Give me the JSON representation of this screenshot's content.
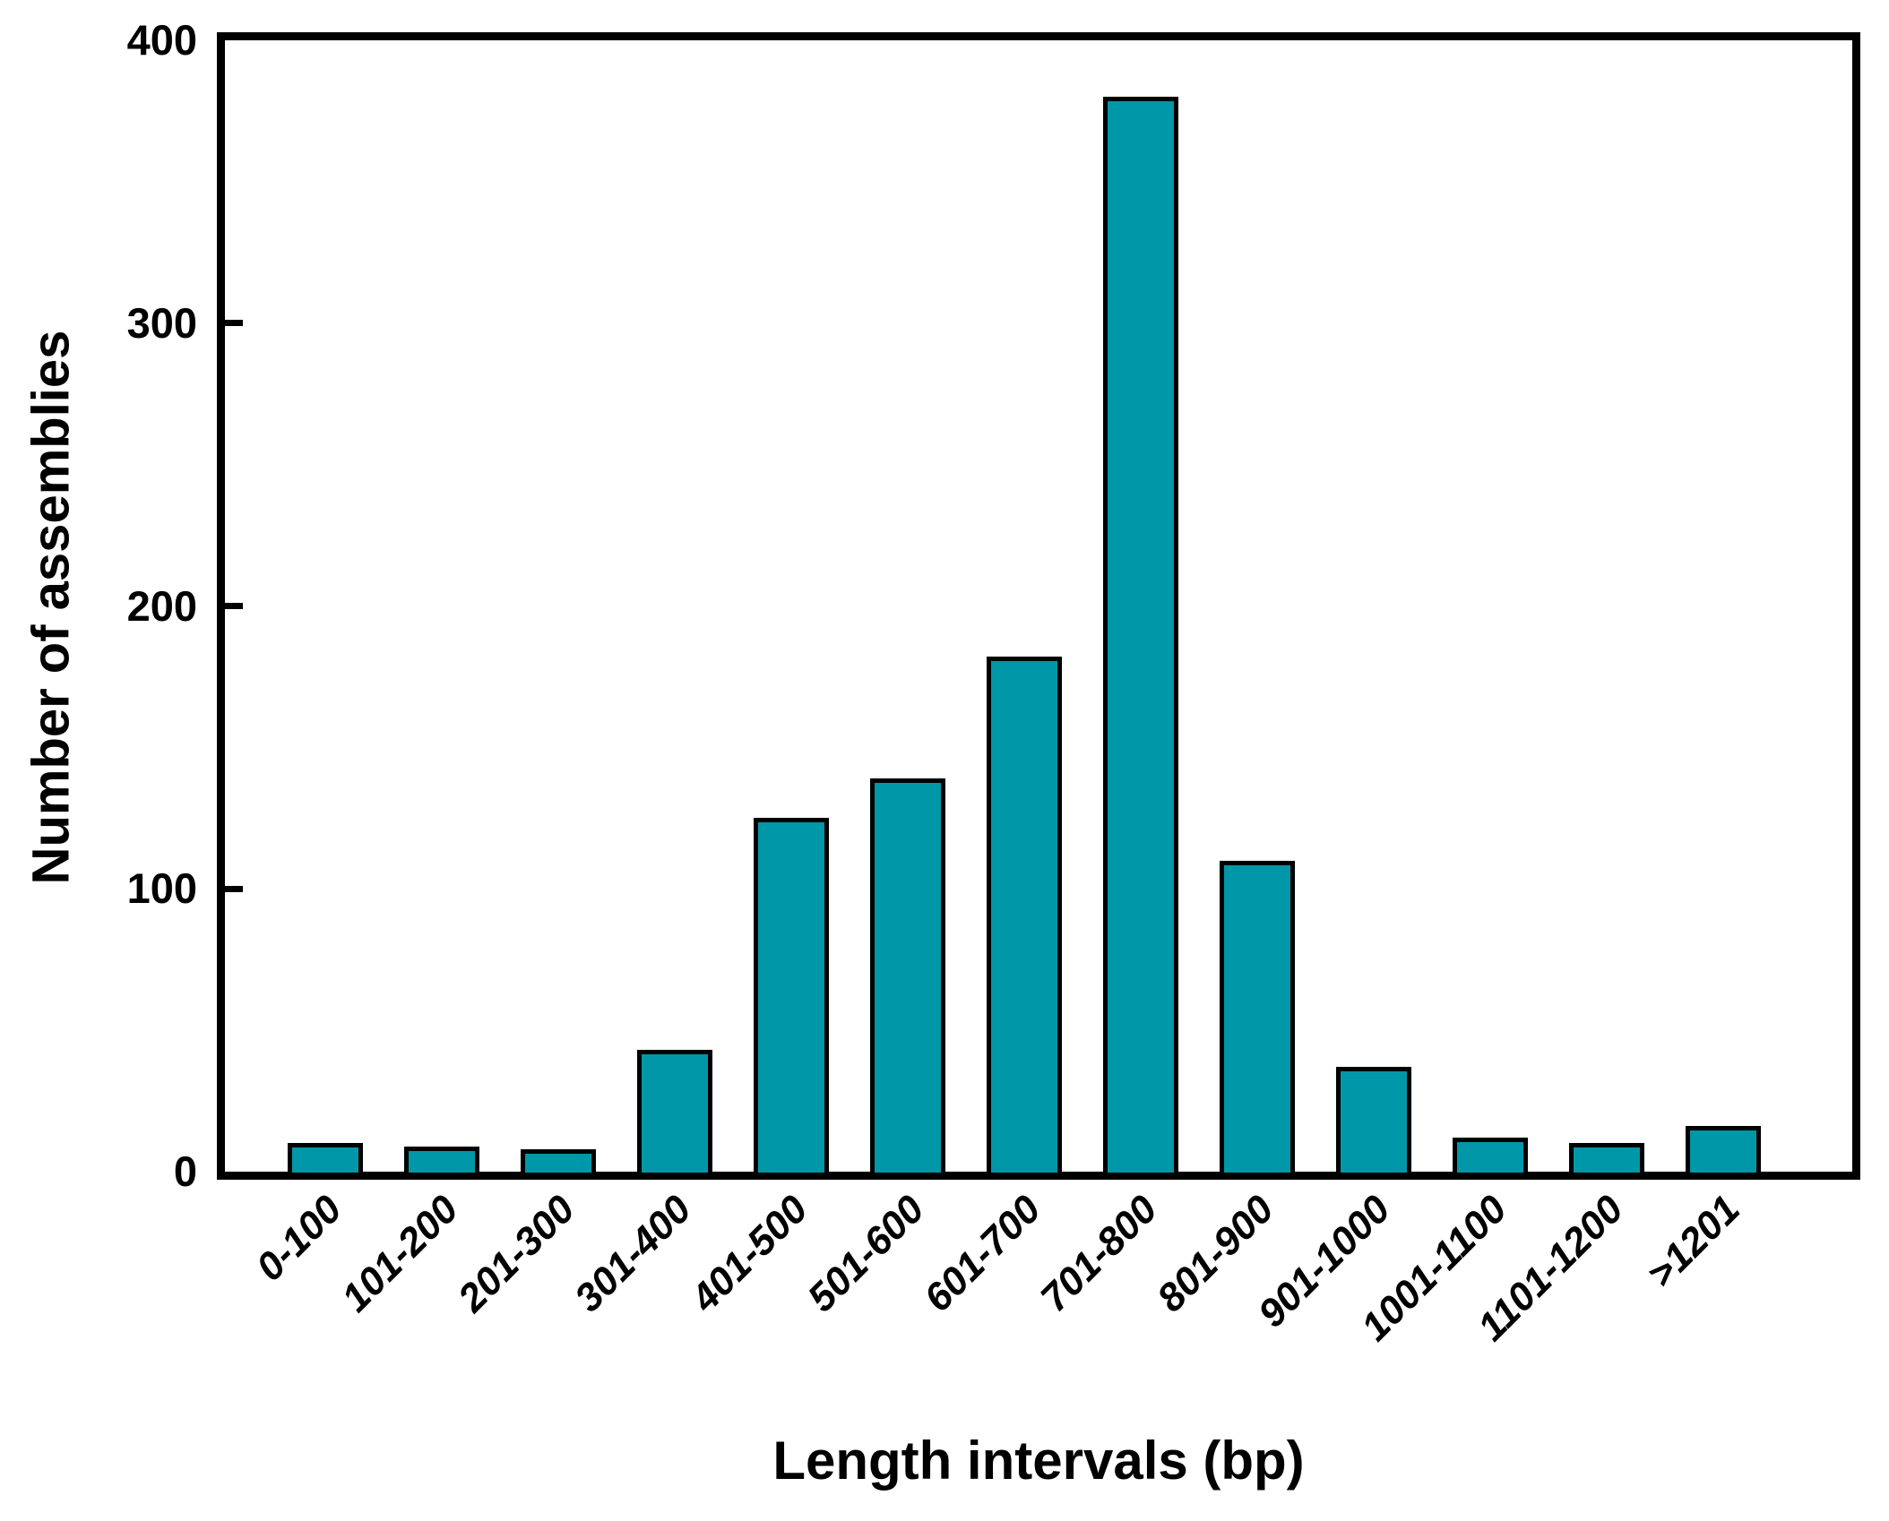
{
  "chart_data": {
    "type": "bar",
    "title": "",
    "xlabel": "Length intervals (bp)",
    "ylabel": "Number of assemblies",
    "categories": [
      "0-100",
      "101-200",
      "201-300",
      "301-400",
      "401-500",
      "501-600",
      "601-700",
      "701-800",
      "801-900",
      "901-1000",
      "1001-1100",
      "1101-1200",
      ">1201"
    ],
    "values": [
      10,
      9,
      8,
      43,
      125,
      139,
      182,
      380,
      110,
      37,
      12,
      10,
      16
    ],
    "yticks": [
      0,
      100,
      200,
      300,
      400
    ],
    "ylim": [
      0,
      400
    ],
    "grid": false,
    "legend_position": "none",
    "colors": {
      "bar_fill": "#0097a8",
      "bar_border": "#000000",
      "axis": "#000000",
      "background": "#ffffff",
      "text": "#000000"
    }
  }
}
